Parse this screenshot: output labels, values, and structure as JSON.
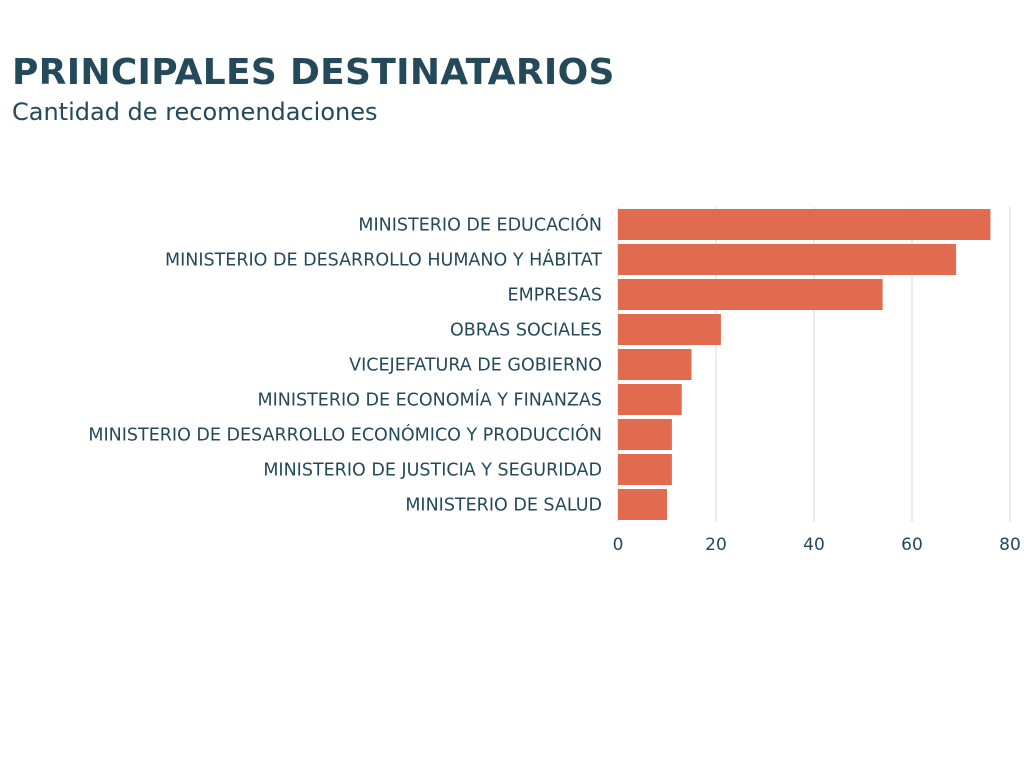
{
  "title": "PRINCIPALES DESTINATARIOS",
  "subtitle": "Cantidad de recomendaciones",
  "colors": {
    "bar": "#e06b4e",
    "text": "#23495b",
    "grid": "#d9d9d9"
  },
  "chart_data": {
    "type": "bar",
    "orientation": "horizontal",
    "categories": [
      "MINISTERIO DE EDUCACIÓN",
      "MINISTERIO DE DESARROLLO HUMANO Y HÁBITAT",
      "EMPRESAS",
      "OBRAS SOCIALES",
      "VICEJEFATURA DE GOBIERNO",
      "MINISTERIO DE ECONOMÍA Y FINANZAS",
      "MINISTERIO DE DESARROLLO ECONÓMICO Y PRODUCCIÓN",
      "MINISTERIO DE JUSTICIA Y SEGURIDAD",
      "MINISTERIO DE SALUD"
    ],
    "values": [
      76,
      69,
      54,
      21,
      15,
      13,
      11,
      11,
      10
    ],
    "xlim": [
      0,
      80
    ],
    "xticks": [
      "0",
      "20",
      "40",
      "60",
      "80"
    ],
    "grid": true,
    "legend": "none"
  }
}
